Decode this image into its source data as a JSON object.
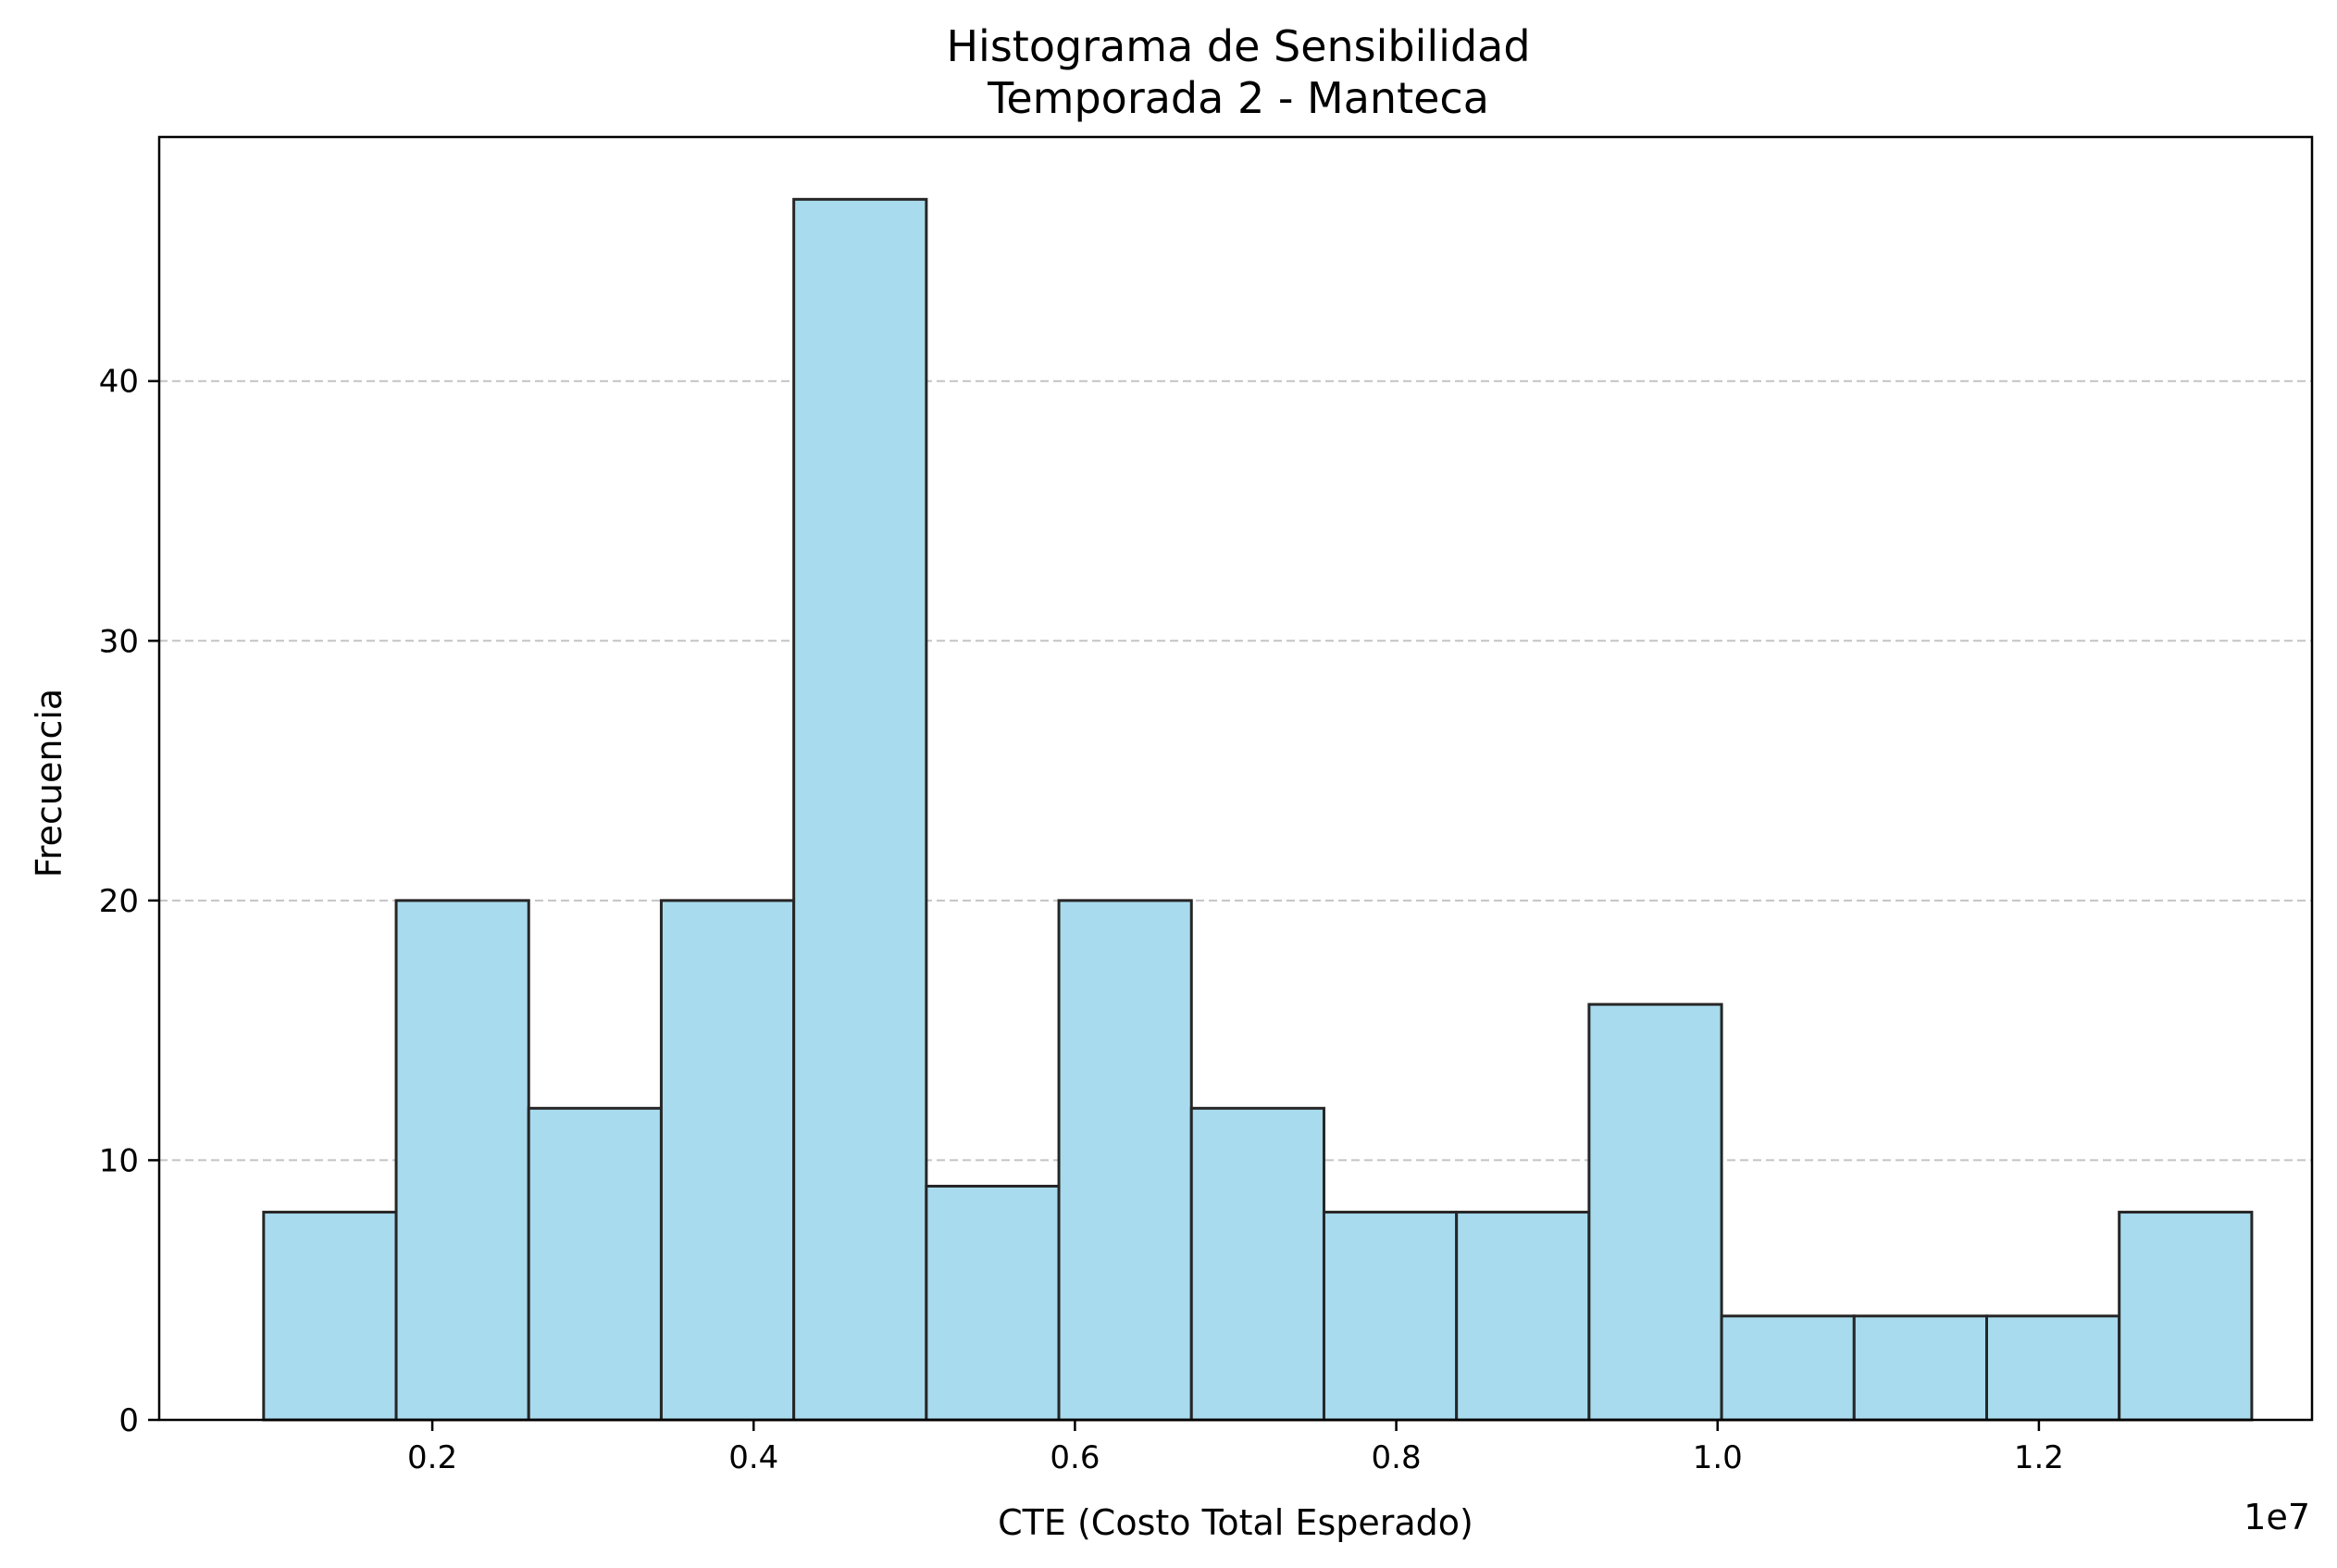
{
  "chart_data": {
    "type": "bar",
    "title": "Histograma de Sensibilidad",
    "subtitle": "Temporada 2 - Manteca",
    "xlabel": "CTE (Costo Total Esperado)",
    "ylabel": "Frecuencia",
    "x_offset_label": "1e7",
    "x_scale": 10000000,
    "xlim": [
      300000,
      13700000
    ],
    "ylim": [
      0,
      49.4
    ],
    "bin_edges": [
      950000,
      1775000,
      2600000,
      3425000,
      4250000,
      5075000,
      5900000,
      6725000,
      7550000,
      8375000,
      9200000,
      10025000,
      10850000,
      11675000,
      12500000,
      13325000
    ],
    "values": [
      8,
      20,
      12,
      20,
      47,
      9,
      20,
      12,
      8,
      8,
      16,
      4,
      4,
      4,
      8
    ],
    "x_ticks": [
      2000000,
      4000000,
      6000000,
      8000000,
      10000000,
      12000000
    ],
    "x_tick_labels": [
      "0.2",
      "0.4",
      "0.6",
      "0.8",
      "1.0",
      "1.2"
    ],
    "y_ticks": [
      0,
      10,
      20,
      30,
      40
    ],
    "y_tick_labels": [
      "0",
      "10",
      "20",
      "30",
      "40"
    ],
    "grid": "y-dashed",
    "bar_color": "#a8dbee",
    "edge_color": "#262626"
  }
}
